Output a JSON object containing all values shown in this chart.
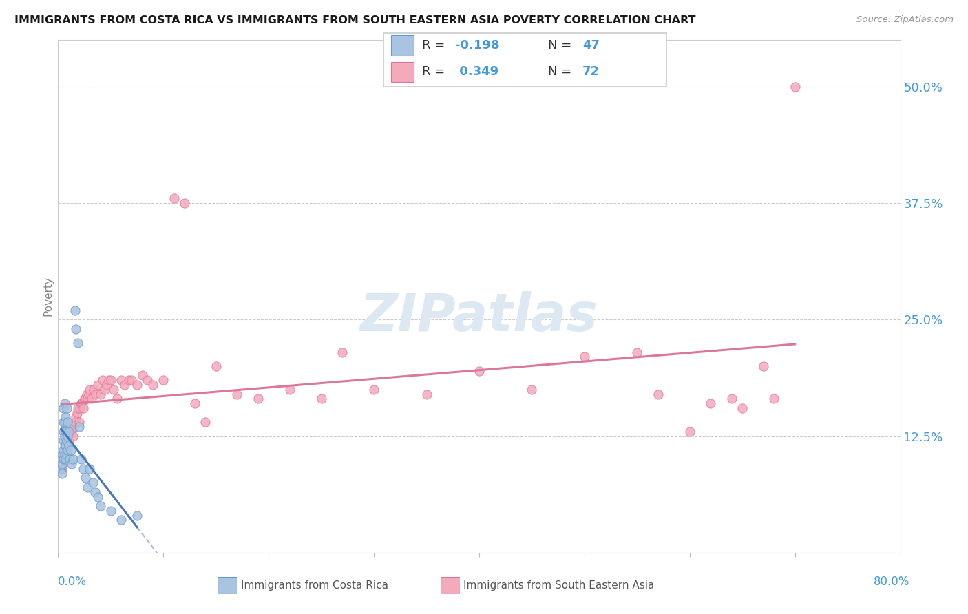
{
  "title": "IMMIGRANTS FROM COSTA RICA VS IMMIGRANTS FROM SOUTH EASTERN ASIA POVERTY CORRELATION CHART",
  "source": "Source: ZipAtlas.com",
  "ylabel": "Poverty",
  "yticks": [
    0.0,
    0.125,
    0.25,
    0.375,
    0.5
  ],
  "ytick_labels": [
    "",
    "12.5%",
    "25.0%",
    "37.5%",
    "50.0%"
  ],
  "xlim": [
    0.0,
    0.8
  ],
  "ylim": [
    0.0,
    0.55
  ],
  "color_blue_fill": "#A8C4E0",
  "color_blue_edge": "#6699CC",
  "color_blue_line": "#4477BB",
  "color_pink_fill": "#F5AABB",
  "color_pink_edge": "#DD7799",
  "color_pink_line": "#DD7799",
  "color_axis_label": "#4499DD",
  "cr_x": [
    0.003,
    0.004,
    0.004,
    0.004,
    0.005,
    0.005,
    0.005,
    0.005,
    0.005,
    0.005,
    0.006,
    0.006,
    0.006,
    0.006,
    0.006,
    0.007,
    0.007,
    0.007,
    0.007,
    0.008,
    0.008,
    0.008,
    0.009,
    0.009,
    0.009,
    0.01,
    0.01,
    0.011,
    0.012,
    0.013,
    0.014,
    0.016,
    0.017,
    0.019,
    0.02,
    0.022,
    0.024,
    0.026,
    0.028,
    0.03,
    0.033,
    0.035,
    0.038,
    0.04,
    0.05,
    0.06,
    0.075
  ],
  "cr_y": [
    0.09,
    0.085,
    0.095,
    0.105,
    0.1,
    0.11,
    0.12,
    0.13,
    0.14,
    0.155,
    0.105,
    0.115,
    0.125,
    0.14,
    0.16,
    0.1,
    0.115,
    0.13,
    0.145,
    0.105,
    0.12,
    0.155,
    0.11,
    0.125,
    0.14,
    0.115,
    0.13,
    0.1,
    0.11,
    0.095,
    0.1,
    0.26,
    0.24,
    0.225,
    0.135,
    0.1,
    0.09,
    0.08,
    0.07,
    0.09,
    0.075,
    0.065,
    0.06,
    0.05,
    0.045,
    0.035,
    0.04
  ],
  "sea_x": [
    0.004,
    0.005,
    0.006,
    0.007,
    0.008,
    0.009,
    0.01,
    0.011,
    0.012,
    0.013,
    0.014,
    0.015,
    0.016,
    0.017,
    0.018,
    0.019,
    0.02,
    0.021,
    0.022,
    0.023,
    0.024,
    0.025,
    0.026,
    0.027,
    0.028,
    0.029,
    0.03,
    0.032,
    0.034,
    0.036,
    0.038,
    0.04,
    0.042,
    0.044,
    0.046,
    0.048,
    0.05,
    0.053,
    0.056,
    0.06,
    0.063,
    0.067,
    0.07,
    0.075,
    0.08,
    0.085,
    0.09,
    0.1,
    0.11,
    0.12,
    0.13,
    0.14,
    0.15,
    0.17,
    0.19,
    0.22,
    0.25,
    0.27,
    0.3,
    0.35,
    0.4,
    0.45,
    0.5,
    0.55,
    0.57,
    0.6,
    0.62,
    0.64,
    0.65,
    0.67,
    0.68,
    0.7
  ],
  "sea_y": [
    0.09,
    0.1,
    0.105,
    0.11,
    0.1,
    0.115,
    0.12,
    0.125,
    0.13,
    0.13,
    0.125,
    0.135,
    0.14,
    0.145,
    0.15,
    0.155,
    0.14,
    0.155,
    0.16,
    0.16,
    0.155,
    0.165,
    0.165,
    0.17,
    0.165,
    0.17,
    0.175,
    0.165,
    0.175,
    0.17,
    0.18,
    0.17,
    0.185,
    0.175,
    0.18,
    0.185,
    0.185,
    0.175,
    0.165,
    0.185,
    0.18,
    0.185,
    0.185,
    0.18,
    0.19,
    0.185,
    0.18,
    0.185,
    0.38,
    0.375,
    0.16,
    0.14,
    0.2,
    0.17,
    0.165,
    0.175,
    0.165,
    0.215,
    0.175,
    0.17,
    0.195,
    0.175,
    0.21,
    0.215,
    0.17,
    0.13,
    0.16,
    0.165,
    0.155,
    0.2,
    0.165,
    0.5
  ],
  "legend_r1": "-0.198",
  "legend_n1": "47",
  "legend_r2": "0.349",
  "legend_n2": "72"
}
